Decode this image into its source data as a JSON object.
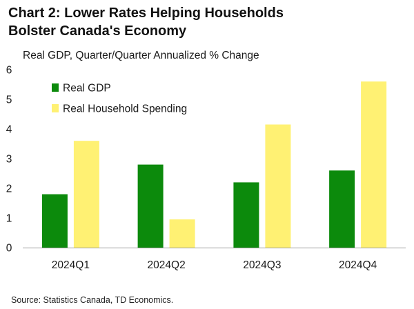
{
  "title_line1": "Chart 2: Lower Rates Helping Households",
  "title_line2": "Bolster Canada's Economy",
  "source": "Source: Statistics Canada, TD Economics.",
  "chart_data": {
    "type": "bar",
    "title": "Chart 2: Lower Rates Helping Households Bolster Canada's Economy",
    "ylabel": "Real GDP, Quarter/Quarter Annualized % Change",
    "xlabel": "",
    "categories": [
      "2024Q1",
      "2024Q2",
      "2024Q3",
      "2024Q4"
    ],
    "series": [
      {
        "name": "Real GDP",
        "color": "#0c8a0c",
        "values": [
          1.8,
          2.8,
          2.2,
          2.6
        ]
      },
      {
        "name": "Real Household Spending",
        "color": "#fff173",
        "values": [
          3.6,
          0.95,
          4.15,
          5.6
        ]
      }
    ],
    "ylim": [
      0,
      6
    ],
    "yticks": [
      0,
      1,
      2,
      3,
      4,
      5,
      6
    ],
    "grid": false,
    "legend_position": "top-left"
  }
}
